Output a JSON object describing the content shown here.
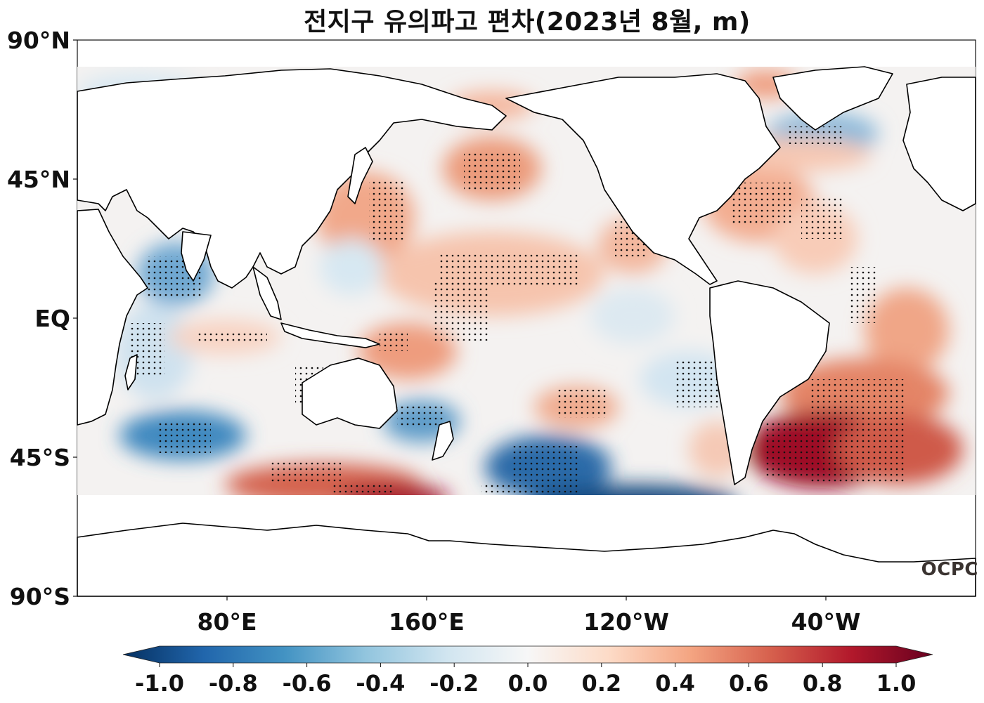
{
  "title": "전지구 유의파고 편차(2023년 8월, m)",
  "lat_ticks": [
    {
      "label": "90°N",
      "lat": 90
    },
    {
      "label": "45°N",
      "lat": 45
    },
    {
      "label": "EQ",
      "lat": 0
    },
    {
      "label": "45°S",
      "lat": -45
    },
    {
      "label": "90°S",
      "lat": -90
    }
  ],
  "lon_ticks": [
    {
      "label": "80°E",
      "lon": 80
    },
    {
      "label": "160°E",
      "lon": 160
    },
    {
      "label": "120°W",
      "lon": 240
    },
    {
      "label": "40°W",
      "lon": 320
    }
  ],
  "colorbar": {
    "min": -1.0,
    "max": 1.0,
    "ticks": [
      "-1.0",
      "-0.8",
      "-0.6",
      "-0.4",
      "-0.2",
      "0.0",
      "0.2",
      "0.4",
      "0.6",
      "0.8",
      "1.0"
    ],
    "colors": [
      "#053061",
      "#2166ac",
      "#4393c3",
      "#92c5de",
      "#d1e5f0",
      "#f7f7f7",
      "#fddbc7",
      "#f4a582",
      "#d6604d",
      "#b2182b",
      "#67001f"
    ]
  },
  "logo": "OCPC"
}
